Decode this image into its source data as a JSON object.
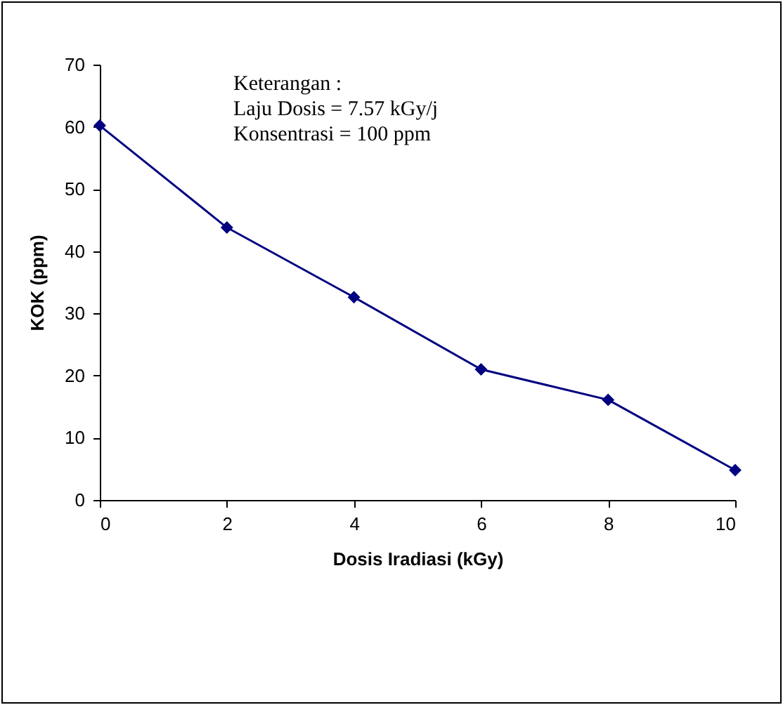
{
  "chart_data": {
    "type": "line",
    "xlabel": "Dosis Iradiasi (kGy)",
    "ylabel": "KOK (ppm)",
    "x": [
      0,
      2,
      4,
      6,
      8,
      10
    ],
    "series": [
      {
        "color": "#000080",
        "values": [
          60.2,
          43.8,
          32.6,
          21.0,
          16.1,
          4.8
        ]
      }
    ],
    "xlim": [
      0,
      10
    ],
    "xticks": [
      0,
      2,
      4,
      6,
      8,
      10
    ],
    "ylim": [
      0,
      70
    ],
    "yticks": [
      0,
      10,
      20,
      30,
      40,
      50,
      60,
      70
    ],
    "marker": "diamond",
    "line_style": "solid",
    "annotations": [
      "Keterangan :",
      "Laju Dosis = 7.57 kGy/j",
      "Konsentrasi  = 100 ppm"
    ]
  }
}
